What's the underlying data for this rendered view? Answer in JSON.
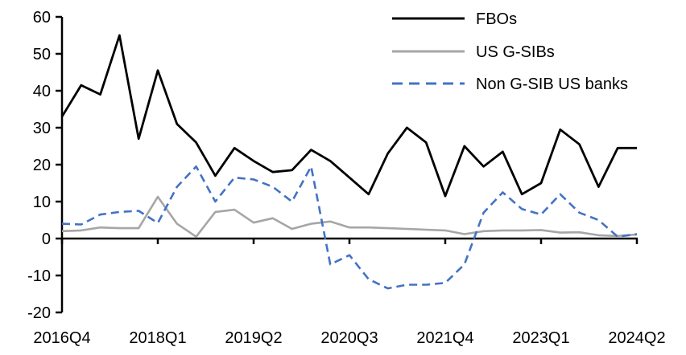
{
  "chart_data": {
    "type": "line",
    "title": "",
    "xlabel": "",
    "ylabel": "",
    "grid": "off",
    "legend_position": "top-right",
    "ylim": [
      -20,
      60
    ],
    "yticks": [
      60,
      50,
      40,
      30,
      20,
      10,
      0,
      -10,
      -20
    ],
    "x": [
      "2016Q4",
      "2017Q1",
      "2017Q2",
      "2017Q3",
      "2017Q4",
      "2018Q1",
      "2018Q2",
      "2018Q3",
      "2018Q4",
      "2019Q1",
      "2019Q2",
      "2019Q3",
      "2019Q4",
      "2020Q1",
      "2020Q2",
      "2020Q3",
      "2020Q4",
      "2021Q1",
      "2021Q2",
      "2021Q3",
      "2021Q4",
      "2022Q1",
      "2022Q2",
      "2022Q3",
      "2022Q4",
      "2023Q1",
      "2023Q2",
      "2023Q3",
      "2023Q4",
      "2024Q1",
      "2024Q2"
    ],
    "x_tick_label_indices": [
      0,
      5,
      10,
      15,
      20,
      25,
      30
    ],
    "x_tick_labels": [
      "2016Q4",
      "2018Q1",
      "2019Q2",
      "2020Q3",
      "2021Q4",
      "2023Q1",
      "2024Q2"
    ],
    "series": [
      {
        "name": "FBOs",
        "color": "#000000",
        "style": "solid",
        "values": [
          33,
          41.5,
          39,
          55,
          27,
          45.5,
          31,
          26,
          17,
          24.5,
          21,
          18,
          18.5,
          24,
          21,
          16.5,
          12,
          23,
          30,
          26,
          11.5,
          25,
          19.5,
          23.5,
          12,
          15,
          29.5,
          25.5,
          14,
          24.5,
          24.5
        ]
      },
      {
        "name": "US G-SIBs",
        "color": "#a6a6a6",
        "style": "solid",
        "values": [
          2,
          2.2,
          3,
          2.8,
          2.8,
          11.3,
          4,
          0.5,
          7.2,
          7.8,
          4.3,
          5.5,
          2.6,
          4,
          4.6,
          3,
          3,
          2.8,
          2.6,
          2.4,
          2.2,
          1.2,
          2,
          2.2,
          2.2,
          2.3,
          1.6,
          1.7,
          0.9,
          0.7,
          1.1
        ]
      },
      {
        "name": "Non G-SIB US banks",
        "color": "#4472c4",
        "style": "dashed",
        "values": [
          4,
          3.8,
          6.5,
          7.2,
          7.5,
          4.2,
          14,
          19.5,
          10,
          16.5,
          16,
          14,
          10,
          19.5,
          -7,
          -4.5,
          -11,
          -13.5,
          -12.5,
          -12.5,
          -12,
          -7,
          7,
          12.5,
          8,
          6.5,
          12,
          7,
          5,
          0.5,
          1.2
        ]
      }
    ]
  }
}
